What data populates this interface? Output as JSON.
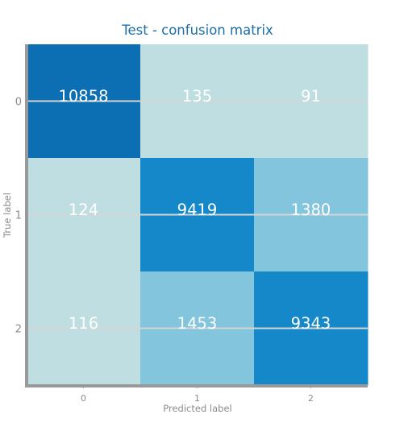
{
  "chart_data": {
    "type": "heatmap",
    "title": "Test - confusion matrix",
    "xlabel": "Predicted label",
    "ylabel": "True label",
    "x_categories": [
      "0",
      "1",
      "2"
    ],
    "y_categories": [
      "0",
      "1",
      "2"
    ],
    "values": [
      [
        10858,
        135,
        91
      ],
      [
        124,
        9419,
        1380
      ],
      [
        116,
        1453,
        9343
      ]
    ],
    "value_labels": [
      [
        "10858",
        "135",
        "91"
      ],
      [
        "124",
        "9419",
        "1380"
      ],
      [
        "116",
        "1453",
        "9343"
      ]
    ],
    "grid": true,
    "colors": {
      "max": "#0d6fb3",
      "high": "#1488c8",
      "mid": "#82c5dd",
      "low": "#bfdee2",
      "gridline": "#d4d4d4",
      "axis": "#999999",
      "title": "#1a6fa8",
      "cell_text": "#ffffff"
    }
  }
}
